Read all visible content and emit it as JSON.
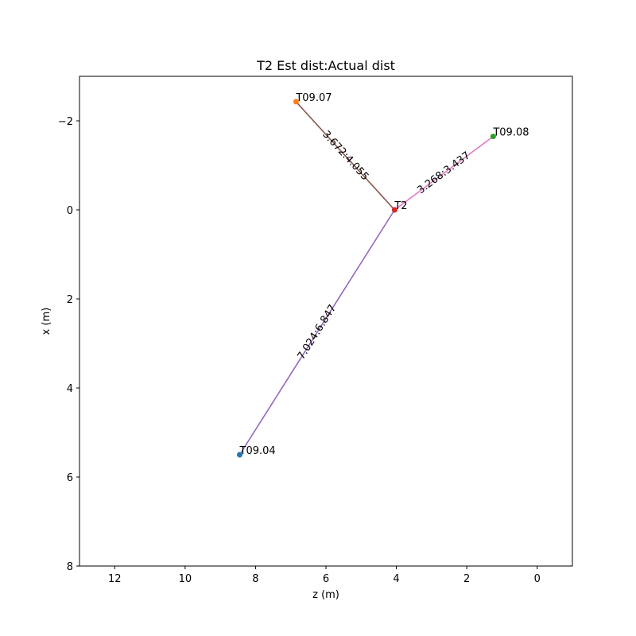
{
  "chart_data": {
    "type": "scatter",
    "title": "T2  Est dist:Actual dist",
    "xlabel": "z (m)",
    "ylabel": "x (m)",
    "xlim": [
      13,
      -1
    ],
    "ylim": [
      8,
      -3
    ],
    "x_inverted": true,
    "y_inverted": true,
    "xticks": [
      12,
      10,
      8,
      6,
      4,
      2,
      0
    ],
    "yticks": [
      -2,
      0,
      2,
      4,
      6,
      8
    ],
    "grid": false,
    "center": {
      "label": "T2",
      "z": 4.05,
      "x": 0.0,
      "color": "#d62728"
    },
    "points": [
      {
        "label": "T09.04",
        "z": 8.45,
        "x": 5.5,
        "color": "#1f77b4"
      },
      {
        "label": "T09.07",
        "z": 6.85,
        "x": -2.43,
        "color": "#ff7f0e"
      },
      {
        "label": "T09.08",
        "z": 1.25,
        "x": -1.65,
        "color": "#2ca02c"
      }
    ],
    "links": [
      {
        "from": "T09.04",
        "label": "7.024:6.847",
        "color": "#9467bd"
      },
      {
        "from": "T09.07",
        "label": "3.672:4.055",
        "color": "#8c564b"
      },
      {
        "from": "T09.08",
        "label": "3.268:3.437",
        "color": "#e377c2"
      }
    ]
  }
}
